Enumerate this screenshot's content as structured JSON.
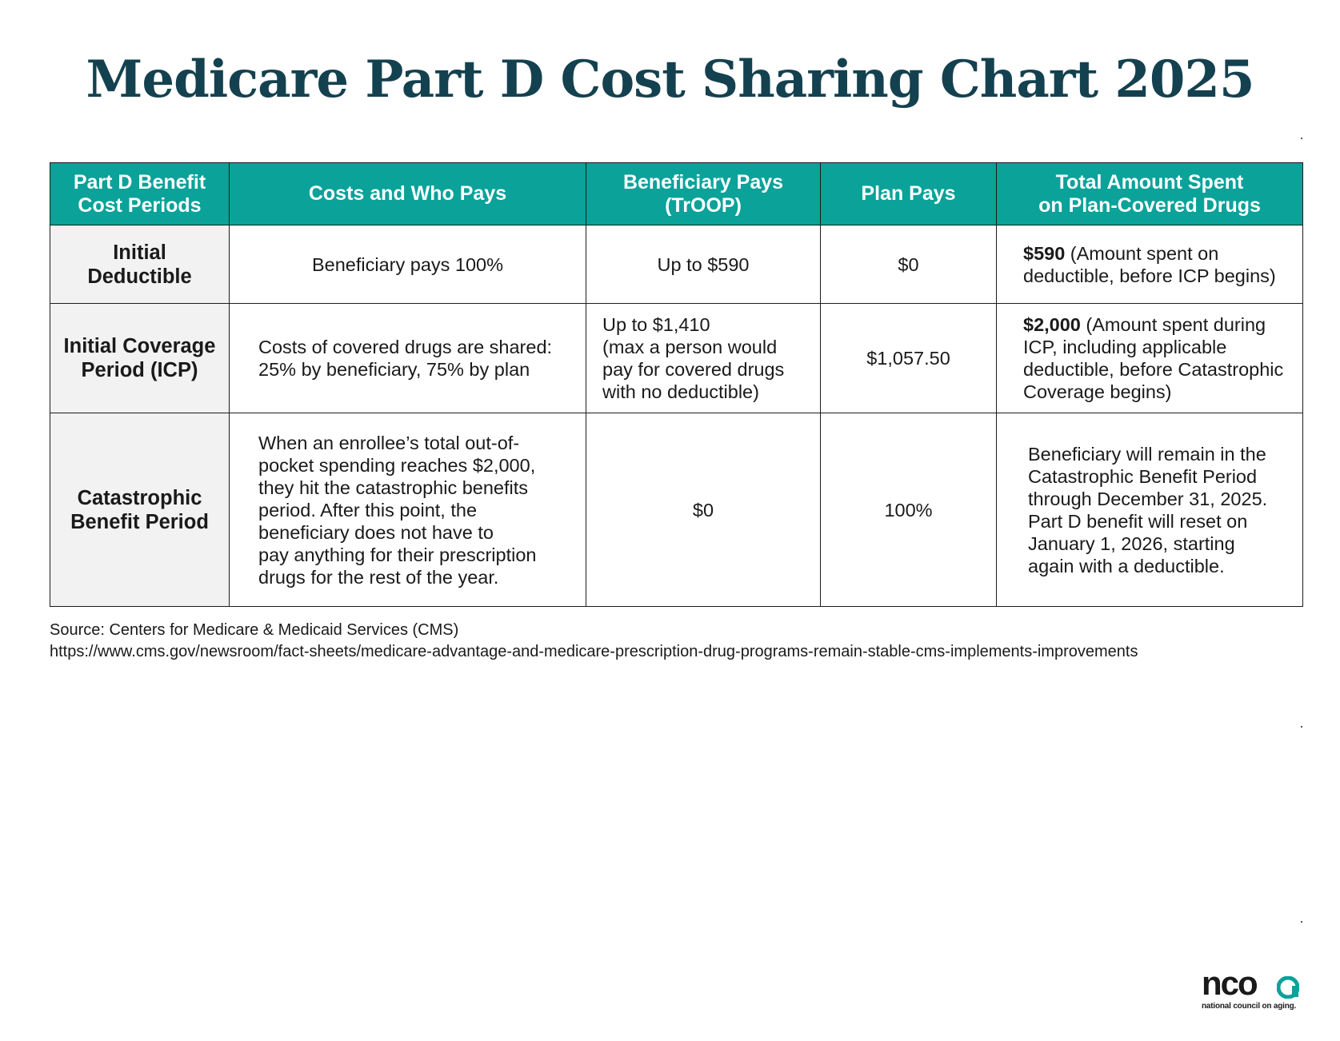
{
  "title": "Medicare Part D Cost Sharing Chart 2025",
  "colors": {
    "title": "#14414f",
    "header_bg": "#0aa299",
    "header_text": "#ffffff",
    "period_cell_bg": "#f2f2f2",
    "logo_accent": "#0aa299"
  },
  "table": {
    "headers": {
      "period": [
        "Part D Benefit",
        "Cost Periods"
      ],
      "costs": "Costs and Who Pays",
      "beneficiary": [
        "Beneficiary Pays",
        "(TrOOP)"
      ],
      "plan": "Plan Pays",
      "total": [
        "Total Amount Spent",
        "on Plan-Covered Drugs"
      ]
    },
    "rows": [
      {
        "period": [
          "Initial",
          "Deductible"
        ],
        "costs": [
          "Beneficiary pays 100%"
        ],
        "beneficiary": [
          "Up to $590"
        ],
        "plan": "$0",
        "total_bold": "$590",
        "total": [
          " (Amount spent on",
          "deductible, before ICP begins)"
        ]
      },
      {
        "period": [
          "Initial Coverage",
          "Period (ICP)"
        ],
        "costs": [
          "Costs of covered drugs are shared:",
          "25% by beneficiary, 75% by plan"
        ],
        "beneficiary": [
          "Up to $1,410",
          "(max a person would",
          "pay for covered drugs",
          "with no deductible)"
        ],
        "plan": "$1,057.50",
        "total_bold": "$2,000",
        "total": [
          " (Amount spent during",
          "ICP, including applicable",
          "deductible, before Catastrophic",
          "Coverage begins)"
        ]
      },
      {
        "period": [
          "Catastrophic",
          "Benefit Period"
        ],
        "costs": [
          "When an enrollee’s total out-of-",
          "pocket spending reaches $2,000,",
          "they hit the catastrophic benefits",
          "period. After this point, the",
          "beneficiary does not have to",
          "pay anything for their prescription",
          "drugs for the rest of the year."
        ],
        "beneficiary": [
          "$0"
        ],
        "plan": "100%",
        "total": [
          "Beneficiary will remain in the",
          "Catastrophic Benefit Period",
          "through December 31, 2025.",
          "Part D benefit will reset on",
          "January 1, 2026, starting",
          "again with a deductible."
        ]
      }
    ]
  },
  "source": {
    "line1": "Source: Centers for Medicare & Medicaid Services (CMS)",
    "line2": "https://www.cms.gov/newsroom/fact-sheets/medicare-advantage-and-medicare-prescription-drug-programs-remain-stable-cms-implements-improvements"
  },
  "logo": {
    "wordmark": "nco",
    "tagline": "national council on aging."
  }
}
